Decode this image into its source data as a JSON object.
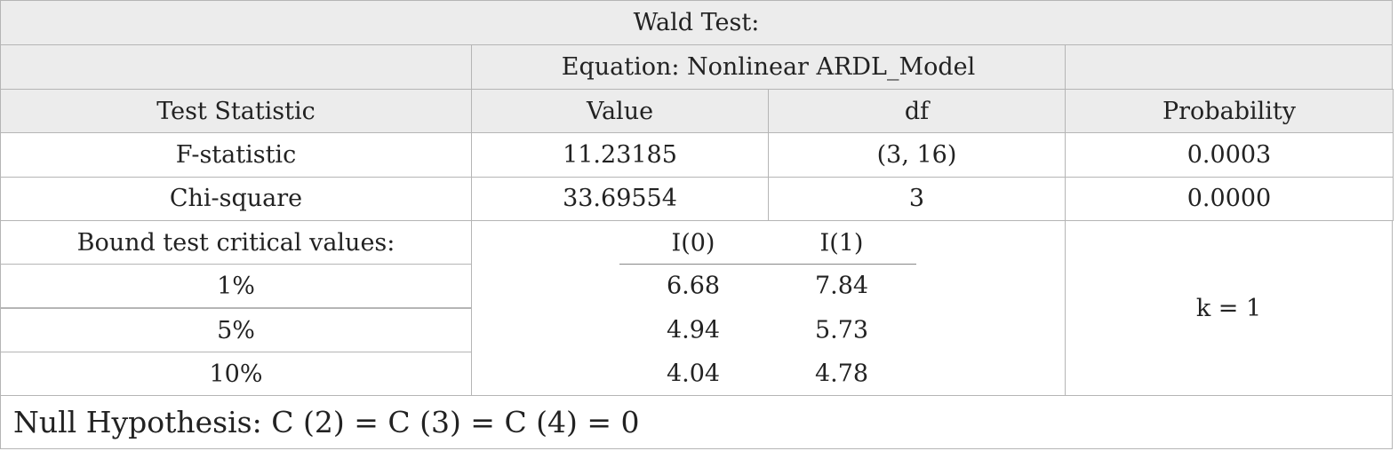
{
  "title": "Wald Test:",
  "equation": "Equation: Nonlinear ARDL_Model",
  "table": {
    "header": [
      "Test Statistic",
      "Value",
      "df",
      "Probability"
    ],
    "rows": [
      [
        "F-statistic",
        "11.23185",
        "(3, 16)",
        "0.0003"
      ],
      [
        "Chi-square",
        "33.69554",
        "3",
        "0.0000"
      ]
    ]
  },
  "bounds": {
    "label": "Bound test critical values:",
    "columns": [
      "I(0)",
      "I(1)"
    ],
    "rows": [
      [
        "1%",
        "6.68",
        "7.84"
      ],
      [
        "5%",
        "4.94",
        "5.73"
      ],
      [
        "10%",
        "4.04",
        "4.78"
      ]
    ],
    "note": "k = 1"
  },
  "null_hypothesis": "Null Hypothesis: C (2) = C (3) = C (4) = 0"
}
